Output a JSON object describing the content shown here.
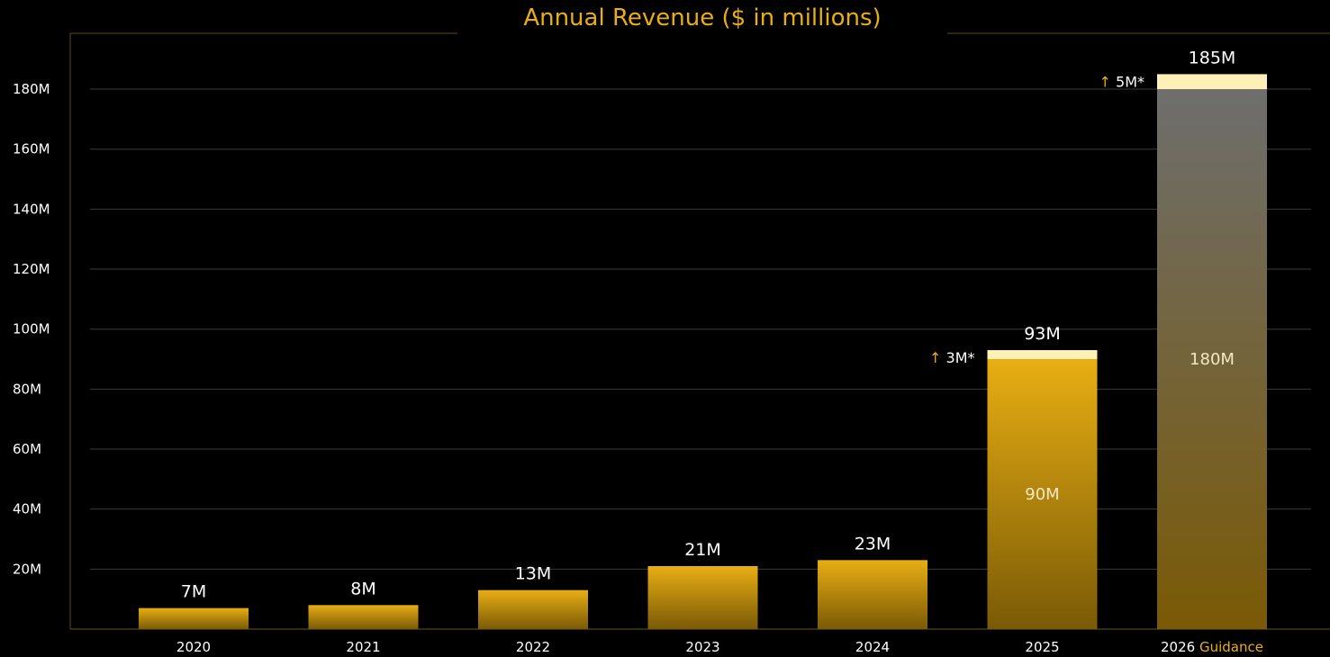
{
  "chart_data": {
    "type": "bar",
    "title": "Annual Revenue ($ in millions)",
    "xlabel": "",
    "ylabel": "",
    "ylim": [
      0,
      180
    ],
    "yticks": [
      20,
      40,
      60,
      80,
      100,
      120,
      140,
      160,
      180
    ],
    "ytick_labels": [
      "20M",
      "40M",
      "60M",
      "80M",
      "100M",
      "120M",
      "140M",
      "160M",
      "180M"
    ],
    "grid": true,
    "categories": [
      "2020",
      "2021",
      "2022",
      "2023",
      "2024",
      "2025",
      "2026"
    ],
    "category_suffix": [
      "",
      "",
      "",
      "",
      "",
      "",
      "Guidance"
    ],
    "series": [
      {
        "values": [
          7,
          8,
          13,
          21,
          23,
          90,
          180
        ]
      },
      {
        "values": [
          0,
          0,
          0,
          0,
          0,
          3,
          5
        ]
      }
    ],
    "total_labels": [
      "7M",
      "8M",
      "13M",
      "21M",
      "23M",
      "93M",
      "185M"
    ],
    "inner_labels": [
      "",
      "",
      "",
      "",
      "",
      "90M",
      "180M"
    ],
    "delta_arrow": "↑",
    "delta_labels": [
      "",
      "",
      "",
      "",
      "",
      "3M*",
      "5M*"
    ],
    "colors": {
      "background": "#000000",
      "gold": "#e8ae13",
      "gold_dark": "#7a5a06",
      "guidance_top": "#6e6e6e",
      "guidance_bottom": "#7a5a06",
      "increment": "#fff0b8",
      "grid": "#3a3a3a"
    }
  }
}
